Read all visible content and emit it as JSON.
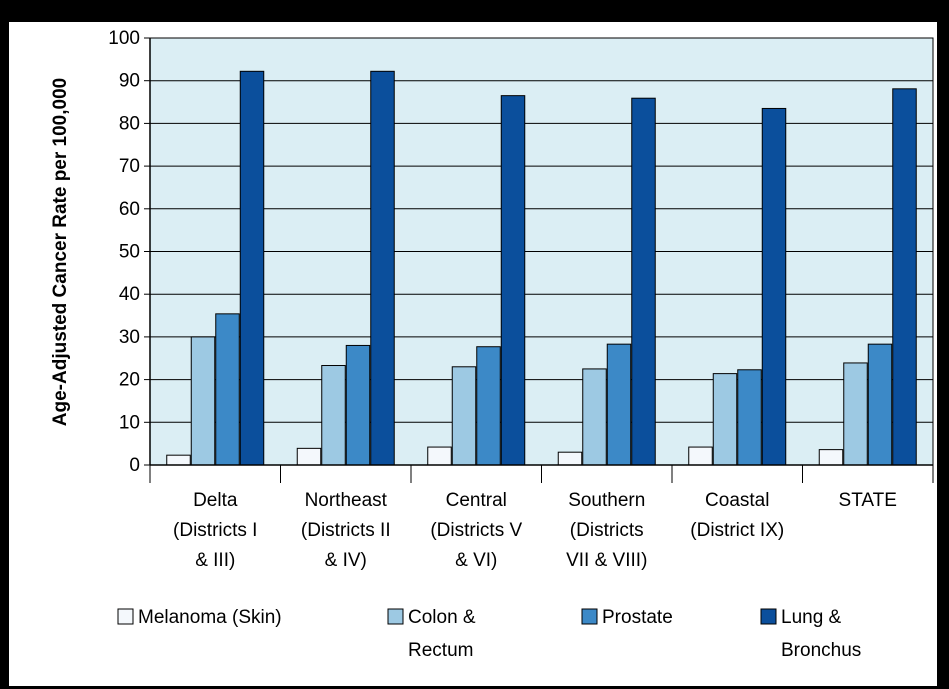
{
  "chart_data": {
    "type": "bar",
    "title": "",
    "xlabel": "",
    "ylabel": "Age-Adjusted Cancer Rate per 100,000",
    "ylim": [
      0,
      100
    ],
    "yticks": [
      0,
      10,
      20,
      30,
      40,
      50,
      60,
      70,
      80,
      90,
      100
    ],
    "grid": "horizontal",
    "legend_position": "bottom",
    "categories": [
      [
        "Delta",
        "(Districts I",
        "& III)"
      ],
      [
        "Northeast",
        "(Districts II",
        "& IV)"
      ],
      [
        "Central",
        "(Districts V",
        "& VI)"
      ],
      [
        "Southern",
        "(Districts",
        "VII & VIII)"
      ],
      [
        "Coastal",
        "(District IX)"
      ],
      [
        "STATE"
      ]
    ],
    "series": [
      {
        "name": "Melanoma (Skin)",
        "name_lines": [
          "Melanoma (Skin)"
        ],
        "color": "#f4f8fc",
        "values": [
          2.3,
          3.9,
          4.2,
          3.0,
          4.2,
          3.6
        ]
      },
      {
        "name": "Colon & Rectum",
        "name_lines": [
          "Colon &",
          "Rectum"
        ],
        "color": "#9dc9e3",
        "values": [
          30.0,
          23.3,
          23.0,
          22.5,
          21.4,
          23.9
        ]
      },
      {
        "name": "Prostate",
        "name_lines": [
          "Prostate"
        ],
        "color": "#3c89c7",
        "values": [
          35.4,
          28.0,
          27.7,
          28.3,
          22.3,
          28.3
        ]
      },
      {
        "name": "Lung & Bronchus",
        "name_lines": [
          "Lung &",
          "Bronchus"
        ],
        "color": "#0b4f9c",
        "values": [
          92.2,
          92.2,
          86.5,
          85.9,
          83.5,
          88.1
        ]
      }
    ],
    "colors": {
      "plot_background": "#dbeef4",
      "outer_background": "#ffffff",
      "frame": "#000000",
      "gridline": "#000000"
    }
  }
}
